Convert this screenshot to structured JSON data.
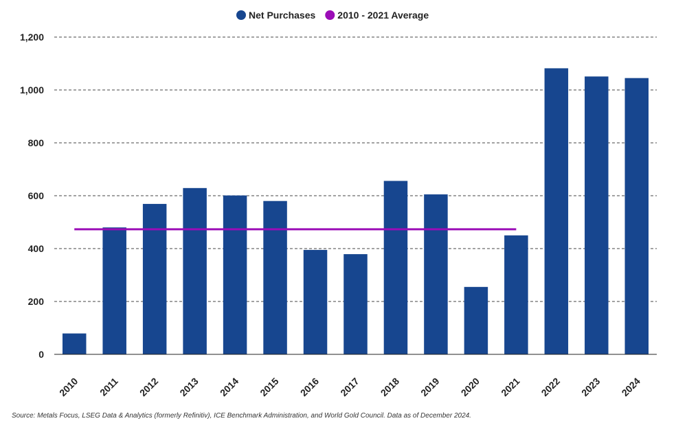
{
  "chart_data": {
    "type": "bar",
    "categories": [
      "2010",
      "2011",
      "2012",
      "2013",
      "2014",
      "2015",
      "2016",
      "2017",
      "2018",
      "2019",
      "2020",
      "2021",
      "2022",
      "2023",
      "2024"
    ],
    "series": [
      {
        "name": "Net Purchases",
        "values": [
          79,
          480,
          569,
          629,
          601,
          580,
          395,
          379,
          656,
          605,
          255,
          450,
          1082,
          1051,
          1045
        ],
        "color": "#17468f"
      }
    ],
    "average": {
      "name": "2010 - 2021 Average",
      "value": 473,
      "from": "2010",
      "to": "2021",
      "color": "#9b0db7"
    },
    "ylim": [
      0,
      1200
    ],
    "yticks": [
      0,
      200,
      400,
      600,
      800,
      1000,
      1200
    ],
    "ytick_labels": [
      "0",
      "200",
      "400",
      "600",
      "800",
      "1,000",
      "1,200"
    ],
    "grid": true,
    "legend_position": "top-center"
  },
  "source": "Source: Metals Focus, LSEG Data & Analytics (formerly Refinitiv), ICE Benchmark Administration, and World Gold Council. Data as of December 2024."
}
